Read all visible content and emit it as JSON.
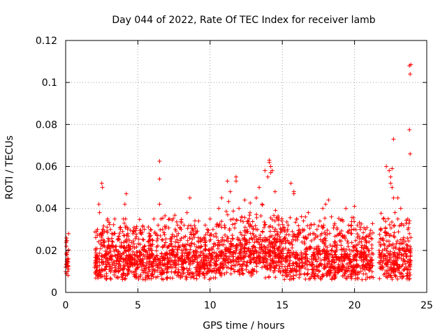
{
  "chart_data": {
    "type": "scatter",
    "title": "Day 044 of 2022, Rate Of TEC Index for receiver lamb",
    "xlabel": "GPS time / hours",
    "ylabel": "ROTI / TECUs",
    "xlim": [
      0,
      25
    ],
    "ylim": [
      0,
      0.12
    ],
    "grid": true,
    "marker": "+",
    "series": [
      {
        "name": "ROTI",
        "color": "#ff0000",
        "x": [
          0.0,
          0.05,
          0.1,
          0.15,
          0.2,
          0.1,
          0.05,
          2.0,
          2.1,
          2.2,
          2.3,
          2.35,
          2.4,
          2.5,
          2.55,
          2.6,
          2.7,
          2.8,
          2.9,
          3.0,
          3.1,
          3.2,
          3.3,
          3.4,
          3.5,
          3.6,
          3.7,
          3.8,
          3.9,
          4.0,
          4.1,
          4.2,
          4.3,
          4.4,
          4.5,
          4.6,
          4.8,
          5.0,
          5.2,
          5.4,
          5.6,
          5.8,
          6.0,
          6.2,
          6.4,
          6.5,
          6.6,
          6.7,
          6.8,
          7.0,
          7.2,
          7.4,
          7.6,
          7.8,
          8.0,
          8.2,
          8.4,
          8.6,
          8.8,
          9.0,
          9.2,
          9.4,
          9.6,
          9.8,
          10.0,
          10.2,
          10.4,
          10.6,
          10.8,
          11.0,
          11.2,
          11.4,
          11.6,
          11.8,
          12.0,
          12.2,
          12.4,
          12.6,
          12.8,
          13.0,
          13.2,
          13.4,
          13.6,
          13.8,
          14.0,
          14.1,
          14.2,
          14.3,
          14.5,
          14.7,
          14.9,
          15.0,
          15.2,
          15.4,
          15.6,
          15.8,
          16.0,
          16.2,
          16.4,
          16.6,
          16.8,
          17.0,
          17.2,
          17.4,
          17.6,
          17.8,
          18.0,
          18.2,
          18.4,
          18.6,
          18.8,
          19.0,
          19.2,
          19.4,
          19.6,
          19.8,
          20.0,
          20.2,
          20.4,
          20.6,
          20.8,
          21.0,
          21.2,
          21.7,
          21.8,
          22.0,
          22.2,
          22.4,
          22.5,
          22.6,
          22.7,
          22.8,
          23.0,
          23.2,
          23.4,
          23.6,
          23.7,
          23.8,
          23.85,
          23.9,
          23.8,
          23.85,
          23.9,
          23.8,
          23.85,
          22.7,
          22.6,
          22.5,
          23.0,
          6.5,
          6.5,
          14.1,
          14.2,
          15.8,
          11.8
        ],
        "y": [
          0.012,
          0.022,
          0.015,
          0.01,
          0.028,
          0.018,
          0.009,
          0.012,
          0.014,
          0.03,
          0.042,
          0.038,
          0.028,
          0.052,
          0.05,
          0.03,
          0.022,
          0.018,
          0.016,
          0.025,
          0.03,
          0.028,
          0.022,
          0.035,
          0.02,
          0.018,
          0.025,
          0.03,
          0.022,
          0.035,
          0.042,
          0.047,
          0.028,
          0.02,
          0.018,
          0.016,
          0.014,
          0.012,
          0.015,
          0.018,
          0.014,
          0.02,
          0.025,
          0.028,
          0.032,
          0.042,
          0.035,
          0.03,
          0.022,
          0.018,
          0.035,
          0.02,
          0.024,
          0.028,
          0.03,
          0.032,
          0.038,
          0.045,
          0.03,
          0.028,
          0.024,
          0.022,
          0.026,
          0.03,
          0.035,
          0.03,
          0.028,
          0.04,
          0.045,
          0.032,
          0.053,
          0.048,
          0.035,
          0.055,
          0.04,
          0.036,
          0.044,
          0.034,
          0.032,
          0.03,
          0.045,
          0.05,
          0.042,
          0.058,
          0.055,
          0.063,
          0.06,
          0.058,
          0.048,
          0.035,
          0.03,
          0.03,
          0.026,
          0.032,
          0.052,
          0.048,
          0.035,
          0.028,
          0.03,
          0.036,
          0.038,
          0.032,
          0.028,
          0.03,
          0.034,
          0.04,
          0.042,
          0.044,
          0.036,
          0.032,
          0.03,
          0.028,
          0.034,
          0.04,
          0.032,
          0.028,
          0.041,
          0.032,
          0.03,
          0.026,
          0.024,
          0.018,
          0.014,
          0.02,
          0.03,
          0.035,
          0.06,
          0.058,
          0.055,
          0.05,
          0.045,
          0.038,
          0.035,
          0.04,
          0.032,
          0.033,
          0.03,
          0.028,
          0.02,
          0.015,
          0.108,
          0.104,
          0.1085,
          0.0775,
          0.066,
          0.073,
          0.059,
          0.052,
          0.045,
          0.0625,
          0.054,
          0.062,
          0.057,
          0.047,
          0.053
        ]
      }
    ]
  }
}
